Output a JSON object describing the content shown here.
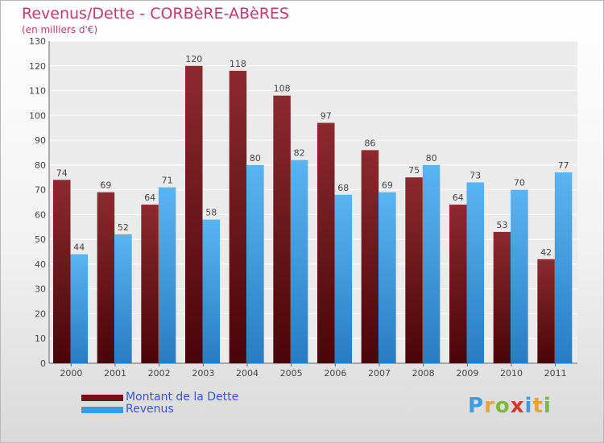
{
  "chart_data": {
    "type": "bar",
    "title": "Revenus/Dette - CORBèRE-ABèRES",
    "subtitle": "(en milliers d'€)",
    "categories": [
      "2000",
      "2001",
      "2002",
      "2003",
      "2004",
      "2005",
      "2006",
      "2007",
      "2008",
      "2009",
      "2010",
      "2011"
    ],
    "series": [
      {
        "name": "Montant de la Dette",
        "color": "#6e1418",
        "values": [
          74,
          69,
          64,
          120,
          118,
          108,
          97,
          86,
          75,
          64,
          53,
          42
        ]
      },
      {
        "name": "Revenus",
        "color": "#3a9be0",
        "values": [
          44,
          52,
          71,
          58,
          80,
          82,
          68,
          69,
          80,
          73,
          70,
          77
        ]
      }
    ],
    "ylim": [
      0,
      130
    ],
    "yticks": [
      0,
      10,
      20,
      30,
      40,
      50,
      60,
      70,
      80,
      90,
      100,
      110,
      120,
      130
    ],
    "grid": true,
    "legend_position": "bottom-left"
  },
  "legend": {
    "items": [
      {
        "label": "Montant de la Dette",
        "color": "#6e1418"
      },
      {
        "label": "Revenus",
        "color": "#3a9be0"
      }
    ]
  },
  "logo": {
    "letters": [
      "P",
      "r",
      "o",
      "x",
      "i",
      "t",
      "i"
    ],
    "colors": [
      "#3b9be6",
      "#e8a23a",
      "#7cb83a",
      "#d23a2a",
      "#3b9be6",
      "#e8a23a",
      "#7cb83a"
    ]
  }
}
